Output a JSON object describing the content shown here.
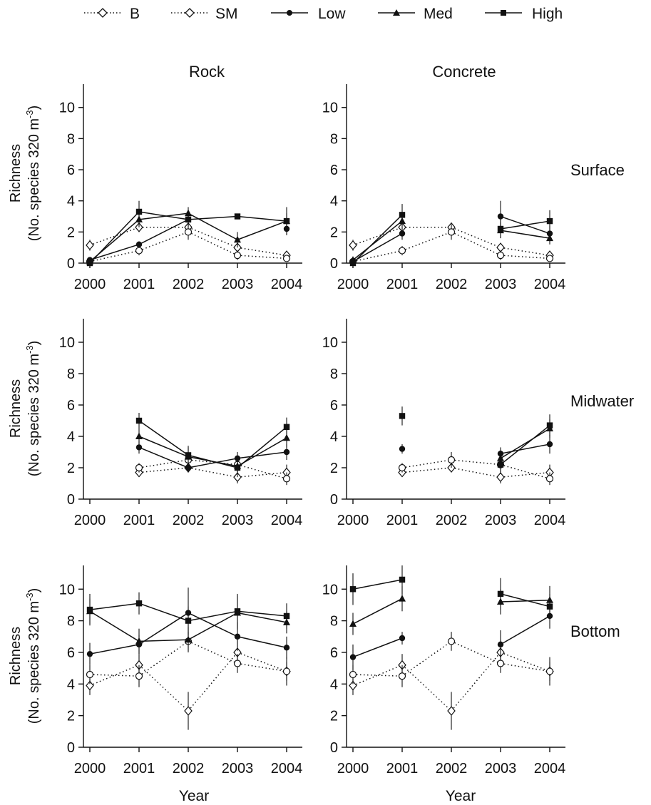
{
  "figure": {
    "legend": [
      "B",
      "SM",
      "Low",
      "Med",
      "High"
    ],
    "column_titles": [
      "Rock",
      "Concrete"
    ],
    "row_labels": [
      "Surface",
      "Midwater",
      "Bottom"
    ],
    "ylabel_line1": "Richness",
    "ylabel_line2": "(No. species 320 m",
    "ylabel_exp": "-3",
    "ylabel_close": ")",
    "xlabel": "Year"
  },
  "chart_data": [
    {
      "type": "line",
      "panel": "Rock / Surface",
      "x": [
        "2000",
        "2001",
        "2002",
        "2003",
        "2004"
      ],
      "ylim": [
        0,
        11.5
      ],
      "yticks": [
        0,
        2,
        4,
        6,
        8,
        10
      ],
      "grid": false,
      "series": [
        {
          "name": "B",
          "style": "dotted",
          "marker": "diamond",
          "values": [
            1.15,
            2.3,
            2.3,
            1.0,
            0.5
          ],
          "err": [
            0.35,
            0.3,
            0.3,
            0.3,
            0.2
          ]
        },
        {
          "name": "SM",
          "style": "dotted",
          "marker": "circle-open",
          "values": [
            0.1,
            0.8,
            2.0,
            0.5,
            0.3
          ],
          "err": [
            0.1,
            0.3,
            0.5,
            0.3,
            0.2
          ]
        },
        {
          "name": "Low",
          "style": "solid",
          "marker": "circle",
          "values": [
            0.2,
            1.2,
            2.8,
            null,
            2.2
          ],
          "err": [
            0.1,
            0.2,
            0.4,
            0,
            0.4
          ]
        },
        {
          "name": "Med",
          "style": "solid",
          "marker": "triangle",
          "values": [
            0.1,
            2.8,
            3.2,
            1.5,
            2.7
          ],
          "err": [
            0.1,
            0.5,
            0.4,
            0.5,
            0.5
          ]
        },
        {
          "name": "High",
          "style": "solid",
          "marker": "square",
          "values": [
            0.0,
            3.3,
            2.8,
            3.0,
            2.7
          ],
          "err": [
            0.1,
            0.7,
            0.5,
            0,
            0.9
          ]
        }
      ]
    },
    {
      "type": "line",
      "panel": "Concrete / Surface",
      "x": [
        "2000",
        "2001",
        "2002",
        "2003",
        "2004"
      ],
      "ylim": [
        0,
        11.5
      ],
      "yticks": [
        0,
        2,
        4,
        6,
        8,
        10
      ],
      "grid": false,
      "series": [
        {
          "name": "B",
          "style": "dotted",
          "marker": "diamond",
          "values": [
            1.15,
            2.3,
            2.3,
            1.0,
            0.5
          ],
          "err": [
            0.35,
            0.3,
            0.3,
            0.3,
            0.2
          ]
        },
        {
          "name": "SM",
          "style": "dotted",
          "marker": "circle-open",
          "values": [
            0.1,
            0.8,
            2.0,
            0.5,
            0.3
          ],
          "err": [
            0.1,
            0.3,
            0.5,
            0.3,
            0.2
          ]
        },
        {
          "name": "Low",
          "style": "solid",
          "marker": "circle",
          "values": [
            0.1,
            1.9,
            null,
            3.0,
            1.9
          ],
          "err": [
            0.1,
            0.4,
            0,
            1.0,
            0.5
          ]
        },
        {
          "name": "Med",
          "style": "solid",
          "marker": "triangle",
          "values": [
            0.2,
            2.7,
            null,
            2.1,
            1.6
          ],
          "err": [
            0.1,
            0.5,
            0,
            0.5,
            0.4
          ]
        },
        {
          "name": "High",
          "style": "solid",
          "marker": "square",
          "values": [
            0.0,
            3.1,
            null,
            2.2,
            2.7
          ],
          "err": [
            0.1,
            0.7,
            0,
            0.6,
            0.7
          ]
        }
      ]
    },
    {
      "type": "line",
      "panel": "Rock / Midwater",
      "x": [
        "2000",
        "2001",
        "2002",
        "2003",
        "2004"
      ],
      "ylim": [
        0,
        11.5
      ],
      "yticks": [
        0,
        2,
        4,
        6,
        8,
        10
      ],
      "grid": false,
      "series": [
        {
          "name": "B",
          "style": "dotted",
          "marker": "diamond",
          "values": [
            null,
            1.7,
            2.0,
            1.4,
            1.7
          ],
          "err": [
            0,
            0.2,
            0.3,
            0.4,
            0.5
          ]
        },
        {
          "name": "SM",
          "style": "dotted",
          "marker": "circle-open",
          "values": [
            null,
            2.0,
            2.5,
            2.2,
            1.3
          ],
          "err": [
            0,
            0.3,
            0.5,
            0.5,
            0.4
          ]
        },
        {
          "name": "Low",
          "style": "solid",
          "marker": "circle",
          "values": [
            null,
            3.3,
            2.0,
            2.6,
            3.0
          ],
          "err": [
            0,
            0.4,
            0.3,
            0.4,
            0.5
          ]
        },
        {
          "name": "Med",
          "style": "solid",
          "marker": "triangle",
          "values": [
            null,
            4.0,
            2.7,
            2.1,
            3.9
          ],
          "err": [
            0,
            0.5,
            0.6,
            0.5,
            0.6
          ]
        },
        {
          "name": "High",
          "style": "solid",
          "marker": "square",
          "values": [
            null,
            5.0,
            2.8,
            2.0,
            4.6
          ],
          "err": [
            0,
            0.5,
            0.6,
            0.6,
            0.6
          ]
        }
      ]
    },
    {
      "type": "line",
      "panel": "Concrete / Midwater",
      "x": [
        "2000",
        "2001",
        "2002",
        "2003",
        "2004"
      ],
      "ylim": [
        0,
        11.5
      ],
      "yticks": [
        0,
        2,
        4,
        6,
        8,
        10
      ],
      "grid": false,
      "series": [
        {
          "name": "B",
          "style": "dotted",
          "marker": "diamond",
          "values": [
            null,
            1.7,
            2.0,
            1.4,
            1.7
          ],
          "err": [
            0,
            0.2,
            0.3,
            0.4,
            0.5
          ]
        },
        {
          "name": "SM",
          "style": "dotted",
          "marker": "circle-open",
          "values": [
            null,
            2.0,
            2.5,
            2.2,
            1.3
          ],
          "err": [
            0,
            0.3,
            0.5,
            0.5,
            0.4
          ]
        },
        {
          "name": "Low",
          "style": "solid",
          "marker": "circle",
          "values": [
            null,
            3.2,
            null,
            2.9,
            3.5
          ],
          "err": [
            0,
            0.3,
            0,
            0.4,
            0.6
          ]
        },
        {
          "name": "Med",
          "style": "solid",
          "marker": "triangle",
          "values": [
            null,
            null,
            null,
            2.6,
            4.5
          ],
          "err": [
            0,
            0,
            0,
            0.5,
            0.6
          ]
        },
        {
          "name": "High",
          "style": "solid",
          "marker": "square",
          "values": [
            null,
            5.3,
            null,
            2.2,
            4.7
          ],
          "err": [
            0,
            0.6,
            0,
            0.6,
            0.7
          ]
        }
      ]
    },
    {
      "type": "line",
      "panel": "Rock / Bottom",
      "x": [
        "2000",
        "2001",
        "2002",
        "2003",
        "2004"
      ],
      "ylim": [
        0,
        11.5
      ],
      "yticks": [
        0,
        2,
        4,
        6,
        8,
        10
      ],
      "grid": false,
      "series": [
        {
          "name": "B",
          "style": "dotted",
          "marker": "diamond",
          "values": [
            3.9,
            5.2,
            2.3,
            6.0,
            4.8
          ],
          "err": [
            0.6,
            0.7,
            1.2,
            0.8,
            0.9
          ]
        },
        {
          "name": "SM",
          "style": "dotted",
          "marker": "circle-open",
          "values": [
            4.6,
            4.5,
            6.7,
            5.3,
            4.8
          ],
          "err": [
            0.6,
            0.7,
            0.6,
            0.6,
            0.6
          ]
        },
        {
          "name": "Low",
          "style": "solid",
          "marker": "circle",
          "values": [
            5.9,
            6.5,
            8.5,
            7.0,
            6.3
          ],
          "err": [
            0.7,
            0.6,
            1.6,
            0.9,
            0.7
          ]
        },
        {
          "name": "Med",
          "style": "solid",
          "marker": "triangle",
          "values": [
            8.6,
            6.7,
            6.8,
            8.5,
            7.9
          ],
          "err": [
            0.8,
            0.8,
            0.8,
            1.1,
            0.7
          ]
        },
        {
          "name": "High",
          "style": "solid",
          "marker": "square",
          "values": [
            8.7,
            9.1,
            8.0,
            8.6,
            8.3
          ],
          "err": [
            1.0,
            0.7,
            0.9,
            1.1,
            0.8
          ]
        }
      ]
    },
    {
      "type": "line",
      "panel": "Concrete / Bottom",
      "x": [
        "2000",
        "2001",
        "2002",
        "2003",
        "2004"
      ],
      "ylim": [
        0,
        11.5
      ],
      "yticks": [
        0,
        2,
        4,
        6,
        8,
        10
      ],
      "grid": false,
      "series": [
        {
          "name": "B",
          "style": "dotted",
          "marker": "diamond",
          "values": [
            3.9,
            5.2,
            2.3,
            6.0,
            4.8
          ],
          "err": [
            0.6,
            0.7,
            1.2,
            0.8,
            0.9
          ]
        },
        {
          "name": "SM",
          "style": "dotted",
          "marker": "circle-open",
          "values": [
            4.6,
            4.5,
            6.7,
            5.3,
            4.8
          ],
          "err": [
            0.6,
            0.7,
            0.6,
            0.6,
            0.6
          ]
        },
        {
          "name": "Low",
          "style": "solid",
          "marker": "circle",
          "values": [
            5.7,
            6.9,
            null,
            6.5,
            8.3
          ],
          "err": [
            0.8,
            0.4,
            0,
            0.9,
            0.8
          ]
        },
        {
          "name": "Med",
          "style": "solid",
          "marker": "triangle",
          "values": [
            7.8,
            9.4,
            null,
            9.2,
            9.3
          ],
          "err": [
            0.7,
            0.8,
            0,
            0.8,
            0.9
          ]
        },
        {
          "name": "High",
          "style": "solid",
          "marker": "square",
          "values": [
            10.0,
            10.6,
            null,
            9.7,
            8.9
          ],
          "err": [
            1.0,
            0.9,
            0,
            1.0,
            0.8
          ]
        }
      ]
    }
  ]
}
